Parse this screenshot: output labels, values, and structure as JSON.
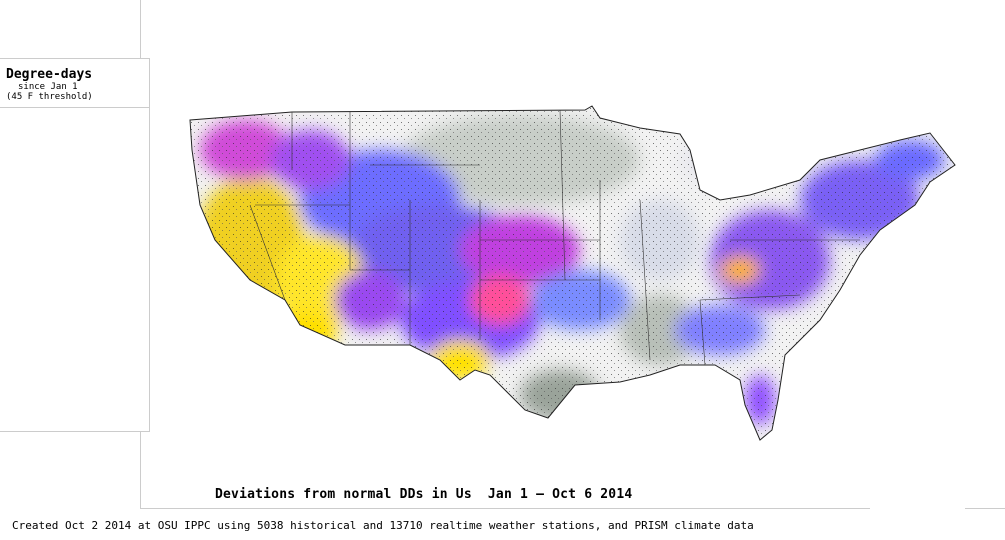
{
  "legend": {
    "title": "Degree-days",
    "subtitle": "since Jan 1",
    "threshold": "(45 F threshold)"
  },
  "caption": "Deviations from normal DDs in Us  Jan 1 – Oct 6 2014",
  "footer": "Created Oct 2 2014 at OSU IPPC using 5038 historical and 13710 realtime weather stations, and PRISM climate data"
}
